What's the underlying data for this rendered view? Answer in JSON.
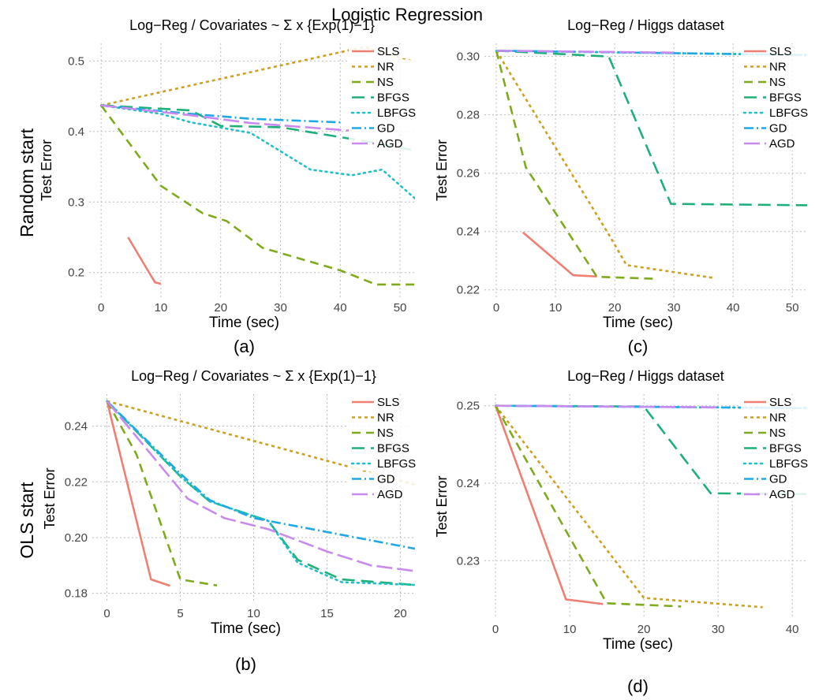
{
  "figure": {
    "title": "Logistic Regression",
    "row_labels": [
      "Random start",
      "OLS start"
    ]
  },
  "colors": {
    "SLS": "#F07F73",
    "NR": "#CDA020",
    "NS": "#7FAA1E",
    "BFGS": "#1FB07A",
    "LBFGS": "#1FC0C8",
    "GD": "#1FA8E6",
    "AGD": "#C98AF0"
  },
  "dash": {
    "SLS": "",
    "NR": "4 4",
    "NS": "11 7",
    "BFGS": "16 8",
    "LBFGS": "2 5",
    "GD": "12 4 2 4",
    "AGD": "20 6"
  },
  "chart_data": [
    {
      "id": "a",
      "type": "line",
      "panel_label": "(a)",
      "title": "Log−Reg / Covariates ~ Σ x {Exp(1)−1}",
      "xlabel": "Time (sec)",
      "ylabel": "Test Error",
      "xlim": [
        -2,
        52.5
      ],
      "ylim": [
        0.165,
        0.525
      ],
      "xticks": [
        0,
        10,
        20,
        30,
        40,
        50
      ],
      "yticks": [
        0.2,
        0.3,
        0.4,
        0.5
      ],
      "ytick_labels": [
        "0.2",
        "0.3",
        "0.4",
        "0.5"
      ],
      "legend": [
        "SLS",
        "NR",
        "NS",
        "BFGS",
        "LBFGS",
        "GD",
        "AGD"
      ],
      "series": [
        {
          "name": "SLS",
          "x": [
            4.5,
            9,
            10
          ],
          "y": [
            0.25,
            0.186,
            0.184
          ]
        },
        {
          "name": "NR",
          "x": [
            0,
            44,
            52.5
          ],
          "y": [
            0.437,
            0.52,
            0.499
          ]
        },
        {
          "name": "NS",
          "x": [
            0,
            10,
            17,
            21,
            27,
            40,
            46,
            52.5
          ],
          "y": [
            0.437,
            0.323,
            0.284,
            0.273,
            0.235,
            0.203,
            0.183,
            0.183
          ]
        },
        {
          "name": "BFGS",
          "x": [
            0,
            15,
            20,
            30,
            45,
            52.5
          ],
          "y": [
            0.437,
            0.43,
            0.408,
            0.406,
            0.385,
            0.373
          ]
        },
        {
          "name": "LBFGS",
          "x": [
            0,
            10,
            15,
            25,
            35,
            42,
            47,
            52.5
          ],
          "y": [
            0.437,
            0.425,
            0.413,
            0.398,
            0.346,
            0.338,
            0.346,
            0.305
          ]
        },
        {
          "name": "GD",
          "x": [
            0,
            15,
            25,
            40
          ],
          "y": [
            0.437,
            0.425,
            0.418,
            0.413
          ]
        },
        {
          "name": "AGD",
          "x": [
            0,
            15,
            25,
            42
          ],
          "y": [
            0.437,
            0.423,
            0.412,
            0.401
          ]
        }
      ]
    },
    {
      "id": "c",
      "type": "line",
      "panel_label": "(c)",
      "title": "Log−Reg / Higgs dataset",
      "xlabel": "Time (sec)",
      "ylabel": "Test Error",
      "xlim": [
        -2,
        52.5
      ],
      "ylim": [
        0.2175,
        0.3045
      ],
      "xticks": [
        0,
        10,
        20,
        30,
        40,
        50
      ],
      "yticks": [
        0.22,
        0.24,
        0.26,
        0.28,
        0.3
      ],
      "ytick_labels": [
        "0.22",
        "0.24",
        "0.26",
        "0.28",
        "0.30"
      ],
      "legend": [
        "SLS",
        "NR",
        "NS",
        "BFGS",
        "LBFGS",
        "GD",
        "AGD"
      ],
      "series": [
        {
          "name": "SLS",
          "x": [
            4.5,
            13,
            17
          ],
          "y": [
            0.2397,
            0.225,
            0.2246
          ]
        },
        {
          "name": "NR",
          "x": [
            0,
            19,
            22,
            37
          ],
          "y": [
            0.302,
            0.239,
            0.2285,
            0.224
          ]
        },
        {
          "name": "NS",
          "x": [
            0,
            5,
            17,
            27
          ],
          "y": [
            0.302,
            0.262,
            0.2245,
            0.2238
          ]
        },
        {
          "name": "BFGS",
          "x": [
            0,
            19,
            29.5,
            52.5
          ],
          "y": [
            0.302,
            0.3,
            0.2495,
            0.249
          ]
        },
        {
          "name": "LBFGS",
          "x": [
            0,
            52.5
          ],
          "y": [
            0.302,
            0.3005
          ]
        },
        {
          "name": "GD",
          "x": [
            0,
            52.5
          ],
          "y": [
            0.302,
            0.3005
          ]
        },
        {
          "name": "AGD",
          "x": [
            0,
            30
          ],
          "y": [
            0.302,
            0.3013
          ]
        }
      ]
    },
    {
      "id": "b",
      "type": "line",
      "panel_label": "(b)",
      "title": "Log−Reg / Covariates ~ Σ x {Exp(1)−1}",
      "xlabel": "Time (sec)",
      "ylabel": "Test Error",
      "xlim": [
        -1,
        21
      ],
      "ylim": [
        0.1765,
        0.2515
      ],
      "xticks": [
        0,
        5,
        10,
        15,
        20
      ],
      "yticks": [
        0.18,
        0.2,
        0.22,
        0.24
      ],
      "ytick_labels": [
        "0.18",
        "0.20",
        "0.22",
        "0.24"
      ],
      "legend": [
        "SLS",
        "NR",
        "NS",
        "BFGS",
        "LBFGS",
        "GD",
        "AGD"
      ],
      "series": [
        {
          "name": "SLS",
          "x": [
            0,
            3,
            4.3
          ],
          "y": [
            0.249,
            0.185,
            0.1827
          ]
        },
        {
          "name": "NR",
          "x": [
            0,
            21
          ],
          "y": [
            0.249,
            0.219
          ]
        },
        {
          "name": "NS",
          "x": [
            0,
            2,
            5,
            7.5
          ],
          "y": [
            0.249,
            0.23,
            0.185,
            0.1828
          ]
        },
        {
          "name": "BFGS",
          "x": [
            0,
            5,
            7,
            11,
            13,
            16,
            21
          ],
          "y": [
            0.249,
            0.222,
            0.213,
            0.206,
            0.192,
            0.185,
            0.183
          ]
        },
        {
          "name": "LBFGS",
          "x": [
            0,
            5,
            7,
            11,
            13,
            16,
            21
          ],
          "y": [
            0.249,
            0.222,
            0.213,
            0.206,
            0.191,
            0.184,
            0.183
          ]
        },
        {
          "name": "GD",
          "x": [
            0,
            5,
            7,
            10,
            15,
            21
          ],
          "y": [
            0.249,
            0.223,
            0.2135,
            0.207,
            0.202,
            0.196
          ]
        },
        {
          "name": "AGD",
          "x": [
            0,
            5.5,
            8,
            11,
            15,
            18,
            21
          ],
          "y": [
            0.249,
            0.214,
            0.207,
            0.203,
            0.195,
            0.19,
            0.188
          ]
        }
      ]
    },
    {
      "id": "d",
      "type": "line",
      "panel_label": "(d)",
      "title": "Log−Reg / Higgs dataset",
      "xlabel": "Time (sec)",
      "ylabel": "Test Error",
      "xlim": [
        -1.5,
        42
      ],
      "ylim": [
        0.2225,
        0.2515
      ],
      "xticks": [
        0,
        10,
        20,
        30,
        40
      ],
      "yticks": [
        0.23,
        0.24,
        0.25
      ],
      "ytick_labels": [
        "0.23",
        "0.24",
        "0.25"
      ],
      "legend": [
        "SLS",
        "NR",
        "NS",
        "BFGS",
        "LBFGS",
        "GD",
        "AGD"
      ],
      "series": [
        {
          "name": "SLS",
          "x": [
            0,
            9.5,
            14.5
          ],
          "y": [
            0.25,
            0.225,
            0.2244
          ]
        },
        {
          "name": "NR",
          "x": [
            0,
            20,
            36
          ],
          "y": [
            0.25,
            0.2252,
            0.224
          ]
        },
        {
          "name": "NS",
          "x": [
            0,
            15,
            25
          ],
          "y": [
            0.25,
            0.2245,
            0.2241
          ]
        },
        {
          "name": "BFGS",
          "x": [
            0,
            20,
            29,
            42
          ],
          "y": [
            0.25,
            0.2499,
            0.2387,
            0.2386
          ]
        },
        {
          "name": "LBFGS",
          "x": [
            0,
            42
          ],
          "y": [
            0.25,
            0.2497
          ]
        },
        {
          "name": "GD",
          "x": [
            0,
            42
          ],
          "y": [
            0.25,
            0.2497
          ]
        },
        {
          "name": "AGD",
          "x": [
            0,
            30
          ],
          "y": [
            0.25,
            0.2498
          ]
        }
      ]
    }
  ]
}
